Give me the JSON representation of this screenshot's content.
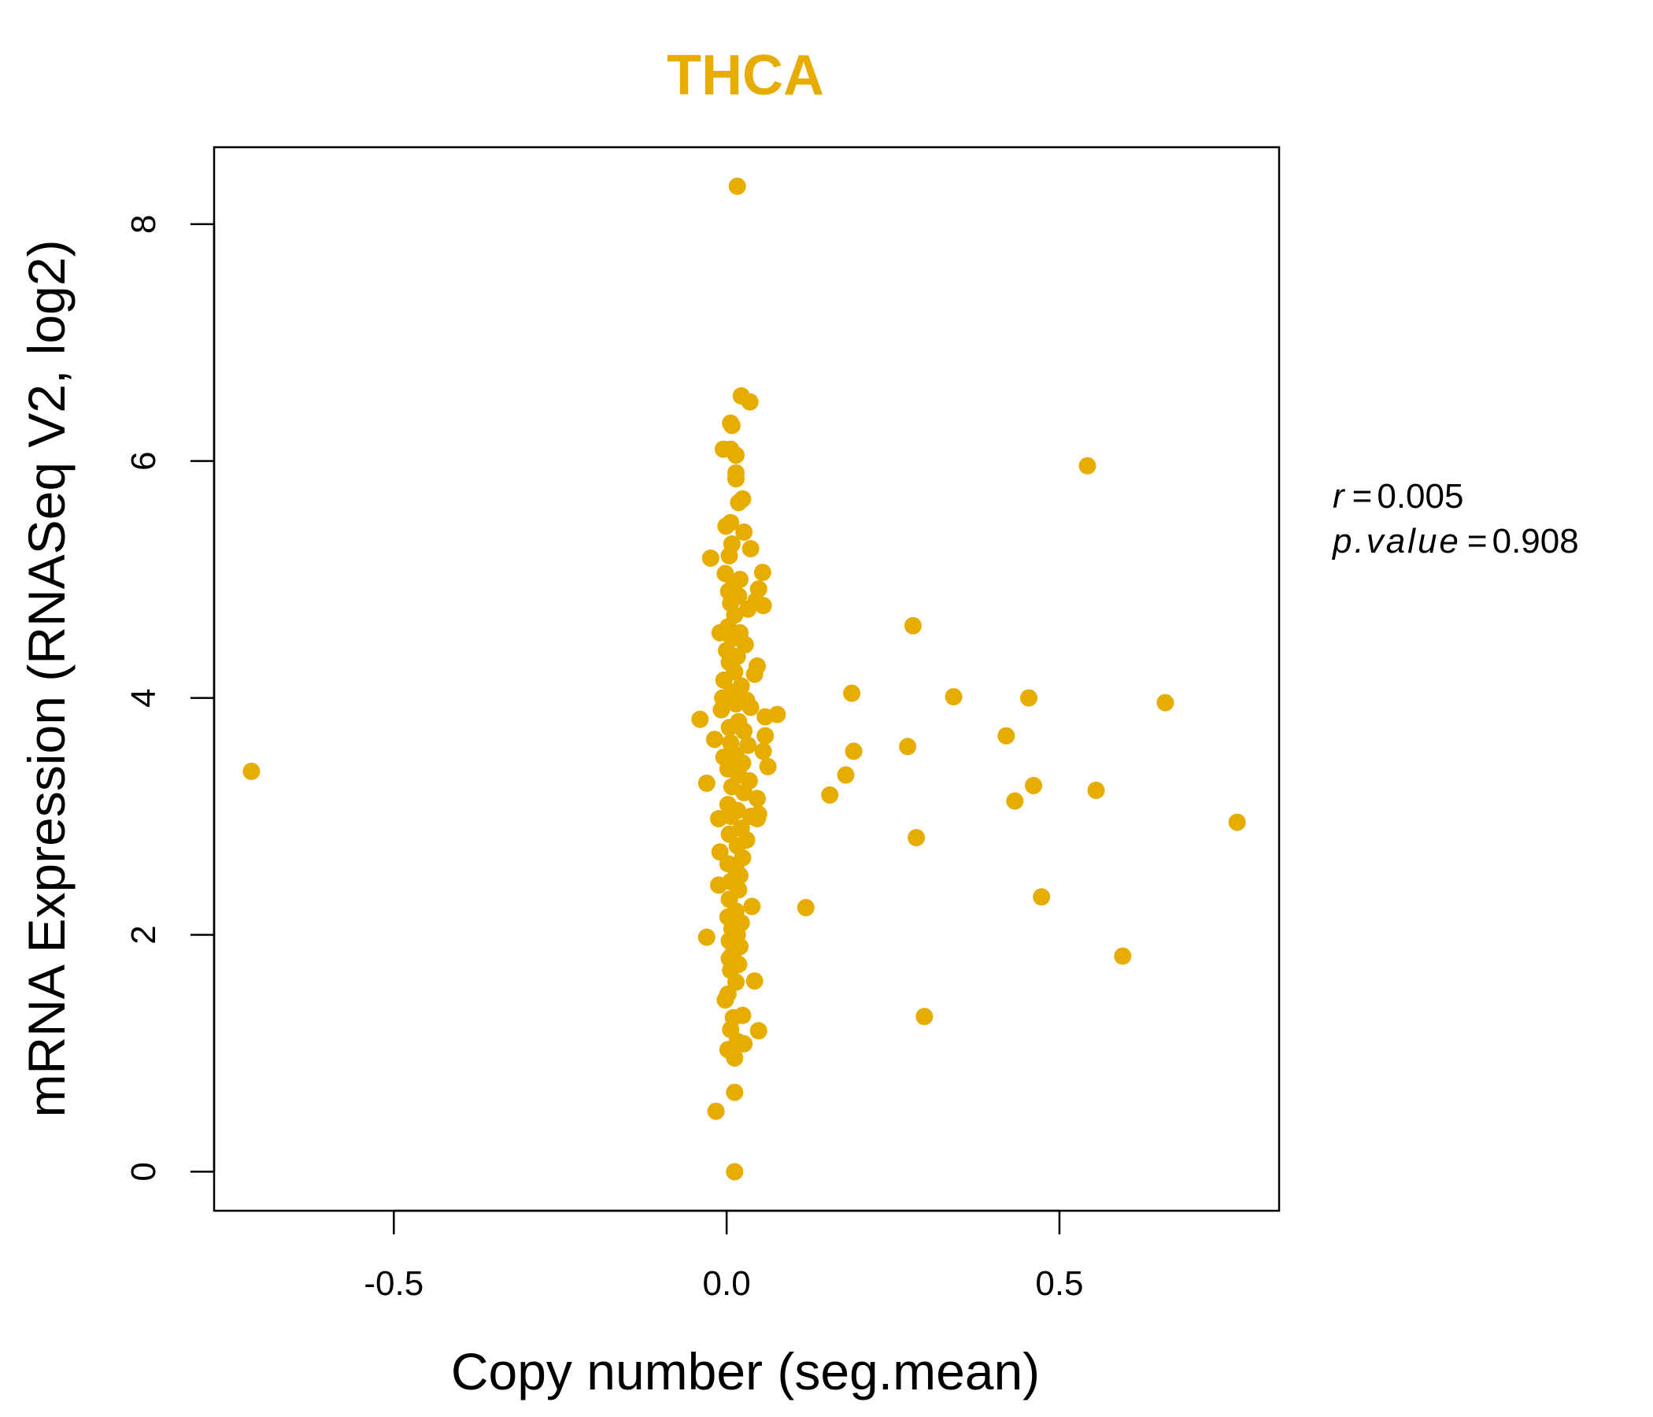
{
  "chart_data": {
    "type": "scatter",
    "title": "THCA",
    "xlabel": "Copy number (seg.mean)",
    "ylabel": "mRNA Expression (RNASeq V2, log2)",
    "xlim": [
      -0.77,
      0.83
    ],
    "ylim": [
      -0.33,
      8.65
    ],
    "x_ticks": [
      -0.5,
      0.0,
      0.5
    ],
    "x_tick_labels": [
      "-0.5",
      "0.0",
      "0.5"
    ],
    "y_ticks": [
      0,
      2,
      4,
      6,
      8
    ],
    "y_tick_labels": [
      "0",
      "2",
      "4",
      "6",
      "8"
    ],
    "grid": false,
    "colors": {
      "point": "#E6AC00",
      "title": "#E6AC00",
      "axis": "#000000"
    },
    "stats": {
      "r_label": "r",
      "r_value": "0.005",
      "p_label": "p.value",
      "p_value": "0.908"
    },
    "series": [
      {
        "name": "samples",
        "points": [
          [
            -0.714,
            3.38
          ],
          [
            0.016,
            8.32
          ],
          [
            0.022,
            6.55
          ],
          [
            0.035,
            6.5
          ],
          [
            0.008,
            6.3
          ],
          [
            0.006,
            6.32
          ],
          [
            -0.005,
            6.1
          ],
          [
            0.006,
            6.1
          ],
          [
            0.014,
            6.05
          ],
          [
            0.014,
            5.9
          ],
          [
            0.014,
            5.85
          ],
          [
            0.024,
            5.68
          ],
          [
            0.018,
            5.65
          ],
          [
            0.006,
            5.48
          ],
          [
            -0.001,
            5.45
          ],
          [
            0.026,
            5.4
          ],
          [
            -0.024,
            5.18
          ],
          [
            0.036,
            5.26
          ],
          [
            0.008,
            5.3
          ],
          [
            0.004,
            5.2
          ],
          [
            0.054,
            5.06
          ],
          [
            -0.002,
            5.05
          ],
          [
            0.02,
            5.0
          ],
          [
            0.01,
            4.95
          ],
          [
            0.048,
            4.92
          ],
          [
            0.003,
            4.9
          ],
          [
            0.018,
            4.86
          ],
          [
            0.044,
            4.82
          ],
          [
            0.006,
            4.8
          ],
          [
            0.055,
            4.78
          ],
          [
            0.032,
            4.75
          ],
          [
            0.012,
            4.7
          ],
          [
            0.002,
            4.6
          ],
          [
            0.02,
            4.55
          ],
          [
            -0.01,
            4.55
          ],
          [
            0.008,
            4.5
          ],
          [
            0.028,
            4.45
          ],
          [
            0.0,
            4.4
          ],
          [
            0.016,
            4.35
          ],
          [
            0.004,
            4.3
          ],
          [
            0.046,
            4.27
          ],
          [
            0.012,
            4.22
          ],
          [
            0.042,
            4.2
          ],
          [
            -0.004,
            4.15
          ],
          [
            0.022,
            4.1
          ],
          [
            0.008,
            4.05
          ],
          [
            -0.006,
            4.0
          ],
          [
            0.03,
            3.98
          ],
          [
            0.014,
            3.95
          ],
          [
            0.036,
            3.92
          ],
          [
            -0.008,
            3.9
          ],
          [
            0.076,
            3.86
          ],
          [
            0.058,
            3.84
          ],
          [
            -0.04,
            3.82
          ],
          [
            0.018,
            3.8
          ],
          [
            0.004,
            3.75
          ],
          [
            0.026,
            3.72
          ],
          [
            0.058,
            3.68
          ],
          [
            -0.018,
            3.65
          ],
          [
            0.006,
            3.62
          ],
          [
            0.032,
            3.6
          ],
          [
            0.055,
            3.55
          ],
          [
            0.014,
            3.52
          ],
          [
            -0.004,
            3.5
          ],
          [
            0.024,
            3.45
          ],
          [
            0.062,
            3.42
          ],
          [
            0.002,
            3.4
          ],
          [
            0.018,
            3.35
          ],
          [
            0.034,
            3.3
          ],
          [
            -0.03,
            3.28
          ],
          [
            0.008,
            3.25
          ],
          [
            0.026,
            3.2
          ],
          [
            0.046,
            3.15
          ],
          [
            0.002,
            3.1
          ],
          [
            0.016,
            3.05
          ],
          [
            0.048,
            3.02
          ],
          [
            0.036,
            3.0
          ],
          [
            0.006,
            3.0
          ],
          [
            0.046,
            2.98
          ],
          [
            -0.012,
            2.98
          ],
          [
            0.022,
            2.9
          ],
          [
            0.004,
            2.85
          ],
          [
            0.03,
            2.8
          ],
          [
            0.016,
            2.75
          ],
          [
            -0.01,
            2.7
          ],
          [
            0.024,
            2.65
          ],
          [
            0.002,
            2.6
          ],
          [
            0.014,
            2.55
          ],
          [
            0.02,
            2.5
          ],
          [
            0.006,
            2.45
          ],
          [
            -0.012,
            2.42
          ],
          [
            0.018,
            2.38
          ],
          [
            0.004,
            2.3
          ],
          [
            0.038,
            2.24
          ],
          [
            0.014,
            2.2
          ],
          [
            0.002,
            2.15
          ],
          [
            0.022,
            2.1
          ],
          [
            0.008,
            2.05
          ],
          [
            0.016,
            2.0
          ],
          [
            -0.03,
            1.98
          ],
          [
            0.004,
            1.95
          ],
          [
            0.02,
            1.9
          ],
          [
            0.01,
            1.85
          ],
          [
            0.004,
            1.8
          ],
          [
            0.018,
            1.75
          ],
          [
            0.006,
            1.7
          ],
          [
            0.042,
            1.61
          ],
          [
            0.014,
            1.6
          ],
          [
            0.002,
            1.5
          ],
          [
            -0.002,
            1.45
          ],
          [
            0.024,
            1.32
          ],
          [
            0.01,
            1.3
          ],
          [
            0.048,
            1.19
          ],
          [
            0.006,
            1.2
          ],
          [
            0.016,
            1.1
          ],
          [
            0.026,
            1.08
          ],
          [
            0.002,
            1.03
          ],
          [
            0.01,
            1.0
          ],
          [
            0.012,
            0.96
          ],
          [
            0.012,
            0.67
          ],
          [
            -0.016,
            0.51
          ],
          [
            0.012,
            0.0
          ],
          [
            0.542,
            5.96
          ],
          [
            0.28,
            4.61
          ],
          [
            0.188,
            4.04
          ],
          [
            0.341,
            4.01
          ],
          [
            0.454,
            4.0
          ],
          [
            0.659,
            3.96
          ],
          [
            0.42,
            3.68
          ],
          [
            0.272,
            3.59
          ],
          [
            0.191,
            3.55
          ],
          [
            0.179,
            3.35
          ],
          [
            0.461,
            3.26
          ],
          [
            0.555,
            3.22
          ],
          [
            0.155,
            3.18
          ],
          [
            0.433,
            3.13
          ],
          [
            0.767,
            2.95
          ],
          [
            0.285,
            2.82
          ],
          [
            0.473,
            2.32
          ],
          [
            0.119,
            2.23
          ],
          [
            0.595,
            1.82
          ],
          [
            0.297,
            1.31
          ]
        ]
      }
    ]
  }
}
